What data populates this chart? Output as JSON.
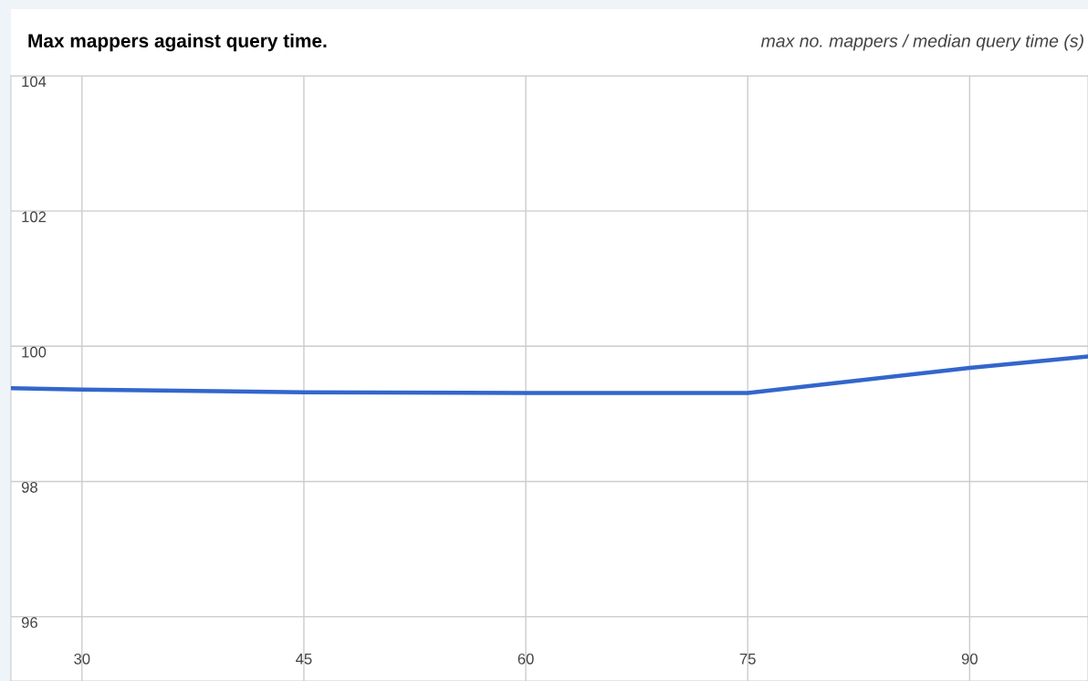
{
  "chart_data": {
    "type": "line",
    "title": "Max mappers against query time.",
    "subtitle": "max no. mappers / median query time (s)",
    "x": [
      25.2,
      30,
      45,
      60,
      75,
      90,
      98
    ],
    "series": [
      {
        "color": "#3366cc",
        "values": [
          99.38,
          99.36,
          99.32,
          99.31,
          99.31,
          99.68,
          99.85
        ]
      }
    ],
    "xlim": [
      25.2,
      98
    ],
    "xticks": [
      30,
      45,
      60,
      75,
      90
    ],
    "ylim": [
      95.05,
      104
    ],
    "yticks": [
      96,
      98,
      100,
      102,
      104
    ],
    "grid": true,
    "marker": "none",
    "line_style": "solid"
  }
}
